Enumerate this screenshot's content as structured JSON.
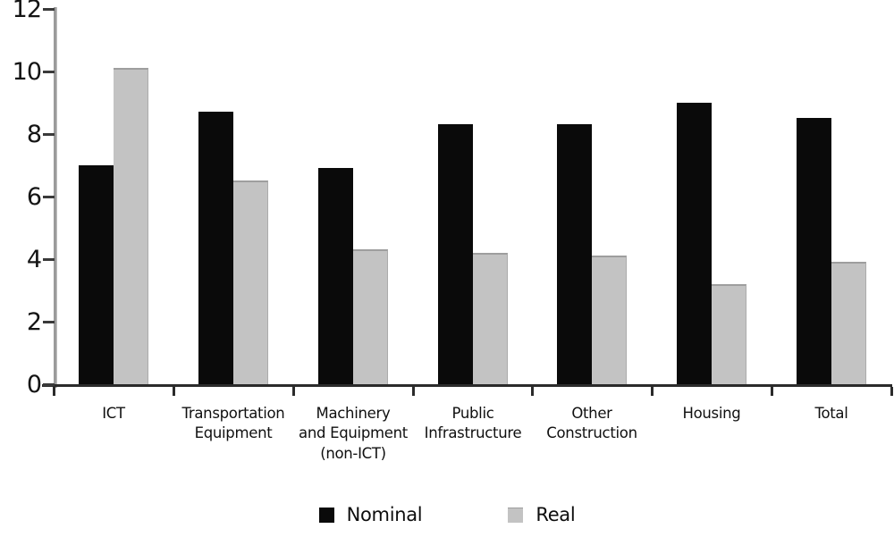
{
  "chart_data": {
    "type": "bar",
    "title": "",
    "xlabel": "",
    "ylabel": "",
    "categories": [
      "ICT",
      "Transportation\nEquipment",
      "Machinery\nand Equipment\n(non-ICT)",
      "Public\nInfrastructure",
      "Other\nConstruction",
      "Housing",
      "Total"
    ],
    "series": [
      {
        "name": "Nominal",
        "color": "#0a0a0a",
        "values": [
          7.0,
          8.7,
          6.9,
          8.3,
          8.3,
          9.0,
          8.5
        ]
      },
      {
        "name": "Real",
        "color": "#c3c3c3",
        "values": [
          10.1,
          6.5,
          4.3,
          4.2,
          4.1,
          3.2,
          3.9
        ]
      }
    ],
    "ylim": [
      0,
      12
    ],
    "yticks": [
      0,
      2,
      4,
      6,
      8,
      10,
      12
    ],
    "grid": false,
    "legend_position": "bottom"
  }
}
